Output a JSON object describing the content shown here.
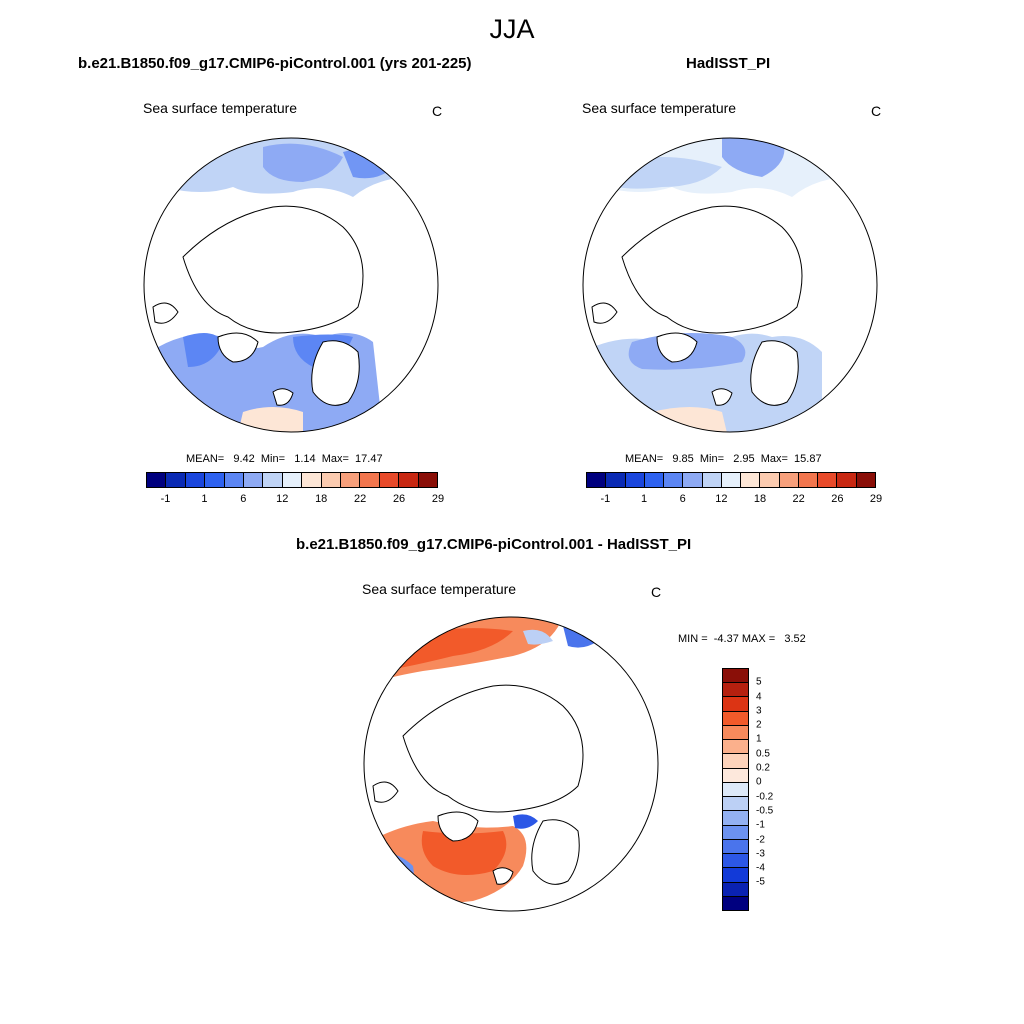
{
  "figure": {
    "season": "JJA"
  },
  "panel_model": {
    "title": "b.e21.B1850.f09_g17.CMIP6-piControl.001 (yrs 201-225)",
    "variable": "Sea surface temperature",
    "units": "C",
    "stats_text": "MEAN=   9.42  Min=   1.14  Max=  17.47"
  },
  "panel_obs": {
    "title": "HadISST_PI",
    "variable": "Sea surface temperature",
    "units": "C",
    "stats_text": "MEAN=   9.85  Min=   2.95  Max=  15.87"
  },
  "panel_diff": {
    "title": "b.e21.B1850.f09_g17.CMIP6-piControl.001 - HadISST_PI",
    "variable": "Sea surface temperature",
    "units": "C",
    "stats_text": "MIN =  -4.37 MAX =   3.52"
  },
  "colorbar_sst": {
    "colors": [
      "#00007f",
      "#0a2ab4",
      "#1a46dd",
      "#2e62f0",
      "#5c86f4",
      "#8eaaf4",
      "#c0d4f6",
      "#e6f0fb",
      "#fde6d6",
      "#fbcbb0",
      "#f7a07c",
      "#f2764e",
      "#e84a2a",
      "#c82812",
      "#8a0f08"
    ],
    "tick_labels": [
      "-1",
      "1",
      "6",
      "12",
      "18",
      "22",
      "26",
      "29"
    ],
    "tick_boundaries": [
      1,
      3,
      5,
      7,
      9,
      11,
      13,
      15
    ]
  },
  "colorbar_diff": {
    "colors_top_to_bottom": [
      "#8a0f08",
      "#b5200f",
      "#dc3414",
      "#f25a2a",
      "#f78a5c",
      "#fbb08c",
      "#fdd3bb",
      "#fde8dc",
      "#dde9f9",
      "#bcd0f5",
      "#93b1f2",
      "#6c92f0",
      "#4a74ec",
      "#2c57e6",
      "#123ad8",
      "#0a22b2",
      "#00007f"
    ],
    "tick_labels": [
      "5",
      "4",
      "3",
      "2",
      "1",
      "0.5",
      "0.2",
      "0",
      "-0.2",
      "-0.5",
      "-1",
      "-2",
      "-3",
      "-4",
      "-5"
    ]
  },
  "legend_colors": {
    "land": "#ffffff",
    "model_atlantic": "#5c86f4",
    "model_pacific": "#8eaaf4",
    "obs_atlantic": "#8eaaf4",
    "obs_pacific": "#c0d4f6",
    "diff_warm": "#f25a2a",
    "diff_cold": "#2c57e6"
  }
}
